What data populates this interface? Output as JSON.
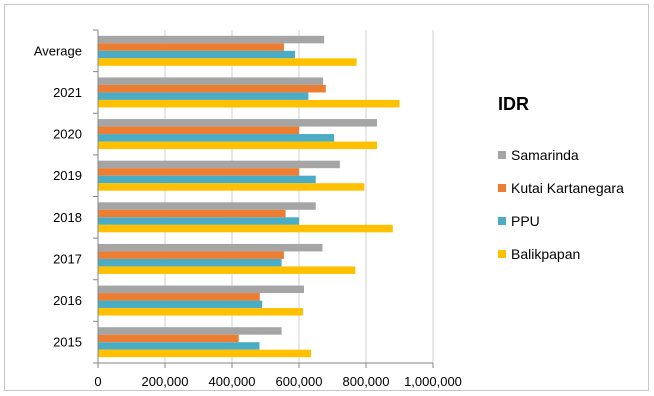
{
  "chart_data": {
    "type": "bar",
    "orientation": "horizontal",
    "categories": [
      "2015",
      "2016",
      "2017",
      "2018",
      "2019",
      "2020",
      "2021",
      "Average"
    ],
    "series": [
      {
        "name": "Samarinda",
        "color": "#a5a5a5",
        "values": [
          548000,
          615000,
          670000,
          650000,
          722000,
          833000,
          672000,
          675000
        ]
      },
      {
        "name": "Kutai Kartanegara",
        "color": "#ed7d31",
        "values": [
          420000,
          483000,
          555000,
          560000,
          600000,
          600000,
          680000,
          555000
        ]
      },
      {
        "name": "PPU",
        "color": "#4bacc6",
        "values": [
          482000,
          490000,
          548000,
          600000,
          650000,
          705000,
          628000,
          588000
        ]
      },
      {
        "name": "Balikpapan",
        "color": "#ffc000",
        "values": [
          636000,
          612000,
          768000,
          880000,
          795000,
          833000,
          900000,
          772000
        ]
      }
    ],
    "title": "",
    "legend_title": "IDR",
    "xlabel": "",
    "ylabel": "",
    "xlim": [
      0,
      1000000
    ],
    "x_ticks": [
      "0",
      "200,000",
      "400,000",
      "600,000",
      "800,000",
      "1,000,000"
    ],
    "grid": "vertical",
    "legend_position": "right"
  }
}
